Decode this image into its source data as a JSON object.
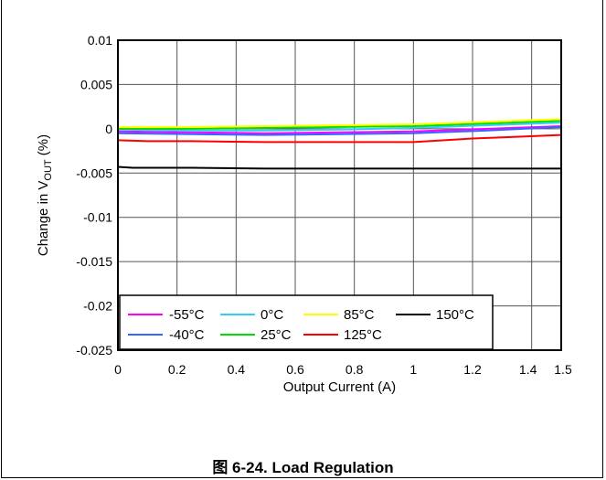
{
  "chart_data": {
    "type": "line",
    "xlabel": "Output Current (A)",
    "ylabel_main": "Change in V",
    "ylabel_sub": "OUT",
    "ylabel_tail": " (%)",
    "xlim": [
      0,
      1.5
    ],
    "ylim": [
      -0.025,
      0.01
    ],
    "x_ticks": [
      0,
      0.2,
      0.4,
      0.6,
      0.8,
      1,
      1.2,
      1.4,
      1.5
    ],
    "x_tick_labels": [
      "0",
      "0.2",
      "0.4",
      "0.6",
      "0.8",
      "1",
      "1.2",
      "1.4",
      "1.5"
    ],
    "y_ticks": [
      0.01,
      0.005,
      0,
      -0.005,
      -0.01,
      -0.015,
      -0.02,
      -0.025
    ],
    "y_tick_labels": [
      "0.01",
      "0.005",
      "0",
      "-0.005",
      "-0.01",
      "-0.015",
      "-0.02",
      "-0.025"
    ],
    "grid": true,
    "legend_position": "bottom-right",
    "series": [
      {
        "name": "-55°C",
        "color": "#ff00ff",
        "x": [
          0,
          0.25,
          0.5,
          0.75,
          1.0,
          1.25,
          1.5
        ],
        "y": [
          -0.0003,
          -0.0004,
          -0.0005,
          -0.0004,
          -0.0003,
          0.0,
          0.0003
        ]
      },
      {
        "name": "-40°C",
        "color": "#3366ff",
        "x": [
          0,
          0.25,
          0.5,
          0.75,
          1.0,
          1.25,
          1.5
        ],
        "y": [
          -0.0005,
          -0.0006,
          -0.0007,
          -0.0006,
          -0.0005,
          -0.0002,
          0.0002
        ]
      },
      {
        "name": "0°C",
        "color": "#33ccff",
        "x": [
          0,
          0.25,
          0.5,
          0.75,
          1.0,
          1.25,
          1.5
        ],
        "y": [
          -0.0001,
          -0.0002,
          -0.0002,
          -0.0001,
          0.0001,
          0.0004,
          0.0007
        ]
      },
      {
        "name": "25°C",
        "color": "#00dd00",
        "x": [
          0,
          0.25,
          0.5,
          0.75,
          1.0,
          1.25,
          1.5
        ],
        "y": [
          0.0,
          0.0,
          0.0001,
          0.0002,
          0.0003,
          0.0006,
          0.0009
        ]
      },
      {
        "name": "85°C",
        "color": "#ffff00",
        "x": [
          0,
          0.25,
          0.5,
          0.75,
          1.0,
          1.25,
          1.5
        ],
        "y": [
          0.0002,
          0.0002,
          0.0003,
          0.0004,
          0.0005,
          0.0008,
          0.0011
        ]
      },
      {
        "name": "125°C",
        "color": "#ff0000",
        "x": [
          0,
          0.1,
          0.25,
          0.5,
          0.75,
          1.0,
          1.2,
          1.35,
          1.5
        ],
        "y": [
          -0.0013,
          -0.0014,
          -0.0014,
          -0.0015,
          -0.0015,
          -0.0015,
          -0.0011,
          -0.0009,
          -0.0007
        ]
      },
      {
        "name": "150°C",
        "color": "#000000",
        "x": [
          0,
          0.05,
          0.25,
          0.5,
          0.75,
          1.0,
          1.25,
          1.5
        ],
        "y": [
          -0.0043,
          -0.0044,
          -0.0044,
          -0.0045,
          -0.0045,
          -0.0045,
          -0.0045,
          -0.0045
        ]
      }
    ],
    "legend_rows": [
      [
        "-55°C",
        "0°C",
        "85°C",
        "150°C"
      ],
      [
        "-40°C",
        "25°C",
        "125°C"
      ]
    ]
  },
  "caption": "图 6-24. Load Regulation"
}
